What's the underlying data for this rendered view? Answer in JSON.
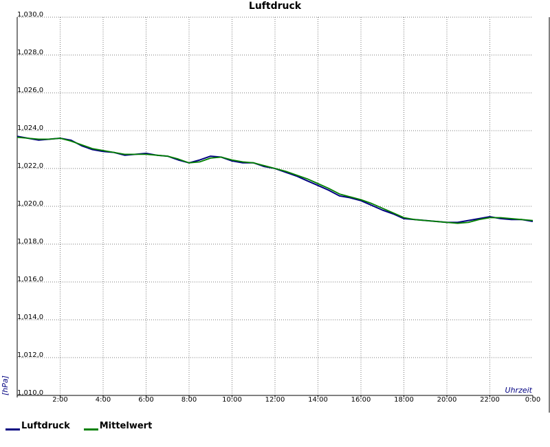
{
  "chart_data": {
    "type": "line",
    "title": "Luftdruck",
    "xlabel": "Uhrzeit",
    "ylabel": "[hPa]",
    "xlim": [
      0,
      24
    ],
    "ylim": [
      1010,
      1030
    ],
    "grid": true,
    "legend": "bottom-left",
    "y_ticks": [
      {
        "v": 1010,
        "label": "1,010,0"
      },
      {
        "v": 1012,
        "label": "1,012,0"
      },
      {
        "v": 1014,
        "label": "1,014,0"
      },
      {
        "v": 1016,
        "label": "1,016,0"
      },
      {
        "v": 1018,
        "label": "1,018,0"
      },
      {
        "v": 1020,
        "label": "1,020,0"
      },
      {
        "v": 1022,
        "label": "1,022,0"
      },
      {
        "v": 1024,
        "label": "1,024,0"
      },
      {
        "v": 1026,
        "label": "1,026,0"
      },
      {
        "v": 1028,
        "label": "1,028,0"
      },
      {
        "v": 1030,
        "label": "1,030,0"
      }
    ],
    "x_ticks": [
      {
        "v": 2,
        "label": "2:00"
      },
      {
        "v": 4,
        "label": "4:00"
      },
      {
        "v": 6,
        "label": "6:00"
      },
      {
        "v": 8,
        "label": "8:00"
      },
      {
        "v": 10,
        "label": "10:00"
      },
      {
        "v": 12,
        "label": "12:00"
      },
      {
        "v": 14,
        "label": "14:00"
      },
      {
        "v": 16,
        "label": "16:00"
      },
      {
        "v": 18,
        "label": "18:00"
      },
      {
        "v": 20,
        "label": "20:00"
      },
      {
        "v": 22,
        "label": "22:00"
      },
      {
        "v": 24,
        "label": "0:00"
      }
    ],
    "series": [
      {
        "name": "Luftdruck",
        "color": "#000080",
        "points": [
          [
            0,
            1023.7
          ],
          [
            0.5,
            1023.6
          ],
          [
            1,
            1023.5
          ],
          [
            1.5,
            1023.55
          ],
          [
            2,
            1023.6
          ],
          [
            2.5,
            1023.5
          ],
          [
            3,
            1023.2
          ],
          [
            3.5,
            1023.0
          ],
          [
            4,
            1022.9
          ],
          [
            4.5,
            1022.85
          ],
          [
            5,
            1022.7
          ],
          [
            5.5,
            1022.75
          ],
          [
            6,
            1022.8
          ],
          [
            6.5,
            1022.7
          ],
          [
            7,
            1022.65
          ],
          [
            7.5,
            1022.45
          ],
          [
            8,
            1022.3
          ],
          [
            8.5,
            1022.45
          ],
          [
            9,
            1022.65
          ],
          [
            9.5,
            1022.6
          ],
          [
            10,
            1022.4
          ],
          [
            10.5,
            1022.3
          ],
          [
            11,
            1022.3
          ],
          [
            11.5,
            1022.1
          ],
          [
            12,
            1022.0
          ],
          [
            12.5,
            1021.8
          ],
          [
            13,
            1021.6
          ],
          [
            13.5,
            1021.35
          ],
          [
            14,
            1021.1
          ],
          [
            14.5,
            1020.85
          ],
          [
            15,
            1020.55
          ],
          [
            15.5,
            1020.45
          ],
          [
            16,
            1020.3
          ],
          [
            16.5,
            1020.05
          ],
          [
            17,
            1019.8
          ],
          [
            17.5,
            1019.6
          ],
          [
            18,
            1019.35
          ],
          [
            18.5,
            1019.3
          ],
          [
            19,
            1019.25
          ],
          [
            19.5,
            1019.2
          ],
          [
            20,
            1019.15
          ],
          [
            20.5,
            1019.15
          ],
          [
            21,
            1019.25
          ],
          [
            21.5,
            1019.35
          ],
          [
            22,
            1019.45
          ],
          [
            22.5,
            1019.35
          ],
          [
            23,
            1019.3
          ],
          [
            23.5,
            1019.3
          ],
          [
            24,
            1019.2
          ]
        ]
      },
      {
        "name": "Mittelwert",
        "color": "#008000",
        "points": [
          [
            0,
            1023.65
          ],
          [
            0.5,
            1023.6
          ],
          [
            1,
            1023.55
          ],
          [
            1.5,
            1023.55
          ],
          [
            2,
            1023.6
          ],
          [
            2.5,
            1023.45
          ],
          [
            3,
            1023.25
          ],
          [
            3.5,
            1023.05
          ],
          [
            4,
            1022.95
          ],
          [
            4.5,
            1022.85
          ],
          [
            5,
            1022.75
          ],
          [
            5.5,
            1022.75
          ],
          [
            6,
            1022.75
          ],
          [
            6.5,
            1022.7
          ],
          [
            7,
            1022.65
          ],
          [
            7.5,
            1022.5
          ],
          [
            8,
            1022.3
          ],
          [
            8.5,
            1022.35
          ],
          [
            9,
            1022.55
          ],
          [
            9.5,
            1022.6
          ],
          [
            10,
            1022.45
          ],
          [
            10.5,
            1022.35
          ],
          [
            11,
            1022.3
          ],
          [
            11.5,
            1022.15
          ],
          [
            12,
            1022.0
          ],
          [
            12.5,
            1021.85
          ],
          [
            13,
            1021.65
          ],
          [
            13.5,
            1021.45
          ],
          [
            14,
            1021.2
          ],
          [
            14.5,
            1020.95
          ],
          [
            15,
            1020.65
          ],
          [
            15.5,
            1020.5
          ],
          [
            16,
            1020.35
          ],
          [
            16.5,
            1020.15
          ],
          [
            17,
            1019.9
          ],
          [
            17.5,
            1019.65
          ],
          [
            18,
            1019.4
          ],
          [
            18.5,
            1019.3
          ],
          [
            19,
            1019.25
          ],
          [
            19.5,
            1019.2
          ],
          [
            20,
            1019.15
          ],
          [
            20.5,
            1019.1
          ],
          [
            21,
            1019.15
          ],
          [
            21.5,
            1019.3
          ],
          [
            22,
            1019.4
          ],
          [
            22.5,
            1019.4
          ],
          [
            23,
            1019.35
          ],
          [
            23.5,
            1019.3
          ],
          [
            24,
            1019.25
          ]
        ]
      }
    ]
  }
}
